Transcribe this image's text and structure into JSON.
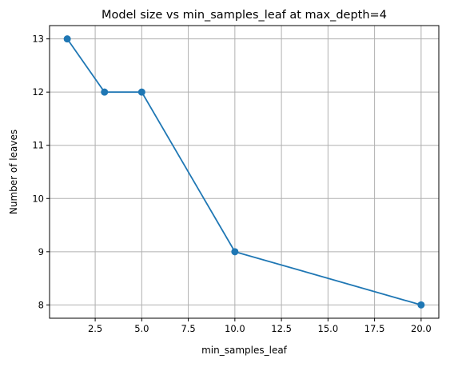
{
  "chart_data": {
    "type": "line",
    "title": "Model size vs min_samples_leaf at max_depth=4",
    "xlabel": "min_samples_leaf",
    "ylabel": "Number of leaves",
    "xlim": [
      0.05,
      20.95
    ],
    "ylim": [
      7.75,
      13.25
    ],
    "x_ticks": [
      2.5,
      5.0,
      7.5,
      10.0,
      12.5,
      15.0,
      17.5,
      20.0
    ],
    "x_tick_labels": [
      "2.5",
      "5.0",
      "7.5",
      "10.0",
      "12.5",
      "15.0",
      "17.5",
      "20.0"
    ],
    "y_ticks": [
      8,
      9,
      10,
      11,
      12,
      13
    ],
    "y_tick_labels": [
      "8",
      "9",
      "10",
      "11",
      "12",
      "13"
    ],
    "grid": true,
    "series": [
      {
        "x": [
          1,
          3,
          5,
          10,
          20
        ],
        "y": [
          13,
          12,
          12,
          9,
          8
        ],
        "color": "#1f77b4",
        "marker": "circle"
      }
    ]
  }
}
